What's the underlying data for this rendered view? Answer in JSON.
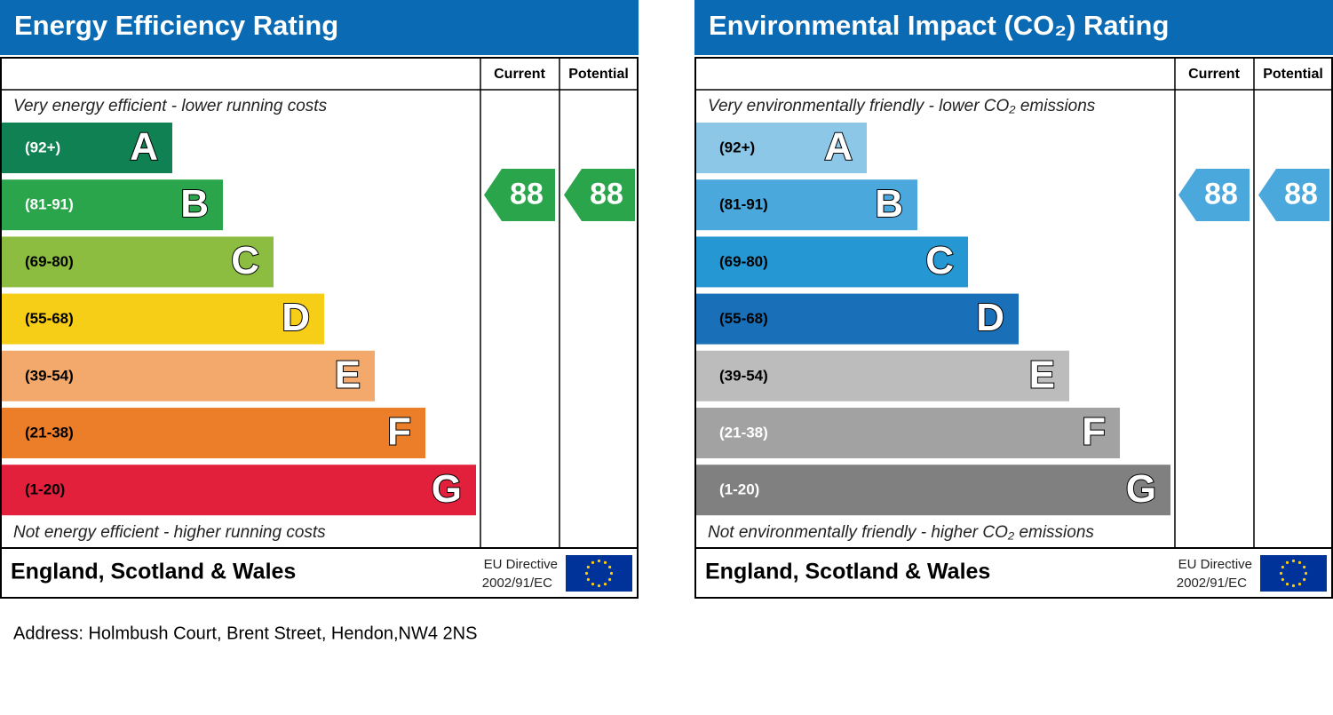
{
  "charts": [
    {
      "title": "Energy Efficiency Rating",
      "columns": [
        "Current",
        "Potential"
      ],
      "top_note": "Very energy efficient - lower running costs",
      "bands": [
        {
          "range": "(92+)",
          "letter": "A",
          "color": "#0f8152",
          "text_color": "#ffffff"
        },
        {
          "range": "(81-91)",
          "letter": "B",
          "color": "#2ba54c",
          "text_color": "#ffffff"
        },
        {
          "range": "(69-80)",
          "letter": "C",
          "color": "#8cbd40",
          "text_color": "#000000"
        },
        {
          "range": "(55-68)",
          "letter": "D",
          "color": "#f6cd17",
          "text_color": "#000000"
        },
        {
          "range": "(39-54)",
          "letter": "E",
          "color": "#f3a96b",
          "text_color": "#000000"
        },
        {
          "range": "(21-38)",
          "letter": "F",
          "color": "#ec7e2a",
          "text_color": "#000000"
        },
        {
          "range": "(1-20)",
          "letter": "G",
          "color": "#e2203c",
          "text_color": "#000000"
        }
      ],
      "bottom_note": "Not energy efficient - higher running costs",
      "current": "88",
      "potential": "88",
      "score_color": "#2ba54c",
      "region": "England, Scotland & Wales",
      "directive": [
        "EU Directive",
        "2002/91/EC"
      ]
    },
    {
      "title": "Environmental Impact (CO₂) Rating",
      "columns": [
        "Current",
        "Potential"
      ],
      "top_note": "Very environmentally friendly - lower CO₂ emissions",
      "bands": [
        {
          "range": "(92+)",
          "letter": "A",
          "color": "#8dc7e8",
          "text_color": "#000000"
        },
        {
          "range": "(81-91)",
          "letter": "B",
          "color": "#4aa8dc",
          "text_color": "#000000"
        },
        {
          "range": "(69-80)",
          "letter": "C",
          "color": "#2597d3",
          "text_color": "#000000"
        },
        {
          "range": "(55-68)",
          "letter": "D",
          "color": "#1a70b8",
          "text_color": "#000000"
        },
        {
          "range": "(39-54)",
          "letter": "E",
          "color": "#bcbcbc",
          "text_color": "#000000"
        },
        {
          "range": "(21-38)",
          "letter": "F",
          "color": "#a2a2a2",
          "text_color": "#ffffff"
        },
        {
          "range": "(1-20)",
          "letter": "G",
          "color": "#808080",
          "text_color": "#ffffff"
        }
      ],
      "bottom_note": "Not environmentally friendly - higher CO₂ emissions",
      "current": "88",
      "potential": "88",
      "score_color": "#4aa8dc",
      "region": "England, Scotland & Wales",
      "directive": [
        "EU Directive",
        "2002/91/EC"
      ]
    }
  ],
  "address": "Address: Holmbush Court, Brent Street, Hendon,NW4 2NS"
}
